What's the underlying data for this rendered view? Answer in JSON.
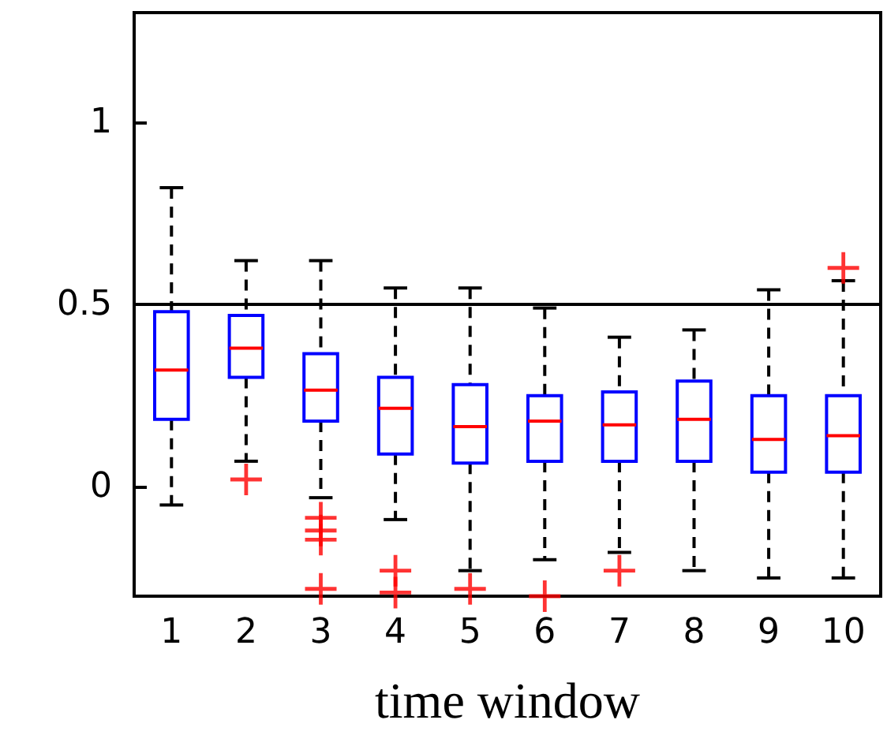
{
  "chart_data": {
    "type": "box",
    "xlabel": "time window",
    "categories": [
      "1",
      "2",
      "3",
      "4",
      "5",
      "6",
      "7",
      "8",
      "9",
      "10"
    ],
    "color": "#0000ff",
    "line_style": "dashed",
    "boxes": [
      {
        "low": -0.05,
        "q1": 0.185,
        "median": 0.32,
        "q3": 0.48,
        "high": 0.82
      },
      {
        "low": 0.07,
        "q1": 0.3,
        "median": 0.38,
        "q3": 0.47,
        "high": 0.62,
        "outliers": [
          0.02
        ]
      },
      {
        "low": -0.03,
        "q1": 0.18,
        "median": 0.265,
        "q3": 0.365,
        "high": 0.62,
        "outliers": [
          -0.085,
          -0.12,
          -0.145,
          -0.28
        ]
      },
      {
        "low": -0.09,
        "q1": 0.09,
        "median": 0.215,
        "q3": 0.3,
        "high": 0.545,
        "outliers": [
          -0.23,
          -0.29
        ]
      },
      {
        "low": -0.23,
        "q1": 0.065,
        "median": 0.165,
        "q3": 0.28,
        "high": 0.545,
        "outliers": [
          -0.28
        ]
      },
      {
        "low": -0.2,
        "q1": 0.07,
        "median": 0.18,
        "q3": 0.25,
        "high": 0.49,
        "outliers": [
          -0.3
        ]
      },
      {
        "low": -0.18,
        "q1": 0.07,
        "median": 0.17,
        "q3": 0.26,
        "high": 0.41,
        "outliers": [
          -0.23
        ]
      },
      {
        "low": -0.23,
        "q1": 0.07,
        "median": 0.185,
        "q3": 0.29,
        "high": 0.43
      },
      {
        "low": -0.25,
        "q1": 0.04,
        "median": 0.13,
        "q3": 0.25,
        "high": 0.54
      },
      {
        "low": -0.25,
        "q1": 0.04,
        "median": 0.14,
        "q3": 0.25,
        "high": 0.565,
        "outliers": [
          0.6
        ]
      }
    ],
    "ylim": [
      -0.3,
      1.3
    ],
    "yticks": [
      0,
      0.5,
      1
    ],
    "ref_lines": [
      {
        "axis": "y",
        "value": 0.5,
        "color": "#000000"
      }
    ],
    "grid": false
  }
}
